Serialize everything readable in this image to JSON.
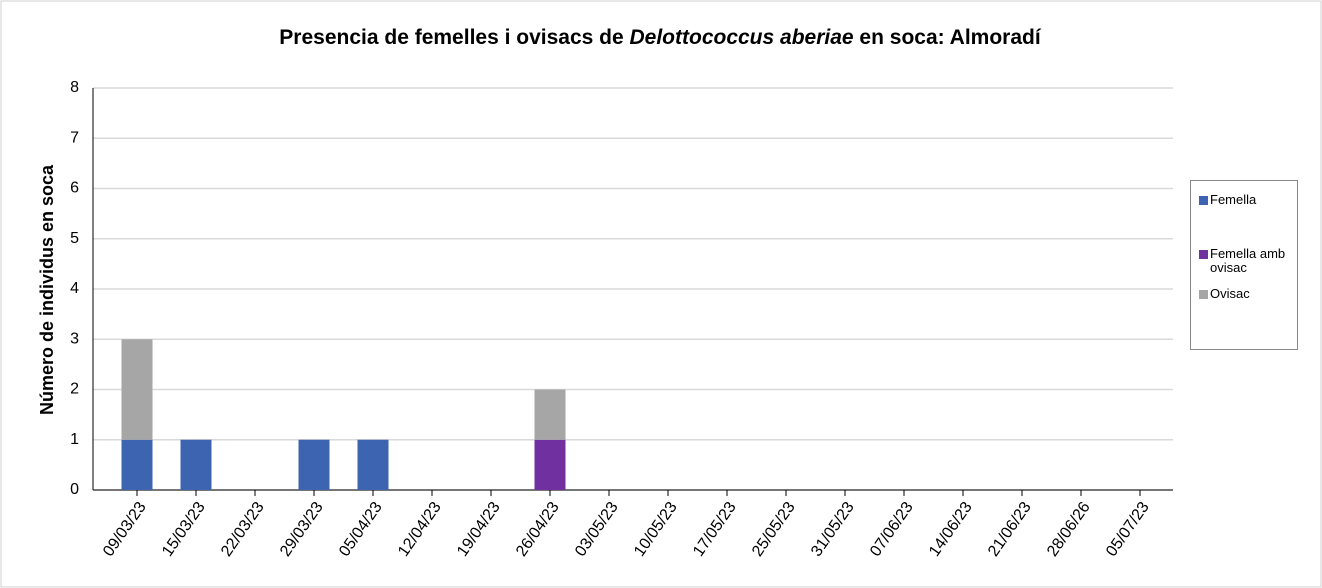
{
  "chart_data": {
    "type": "stacked_bar",
    "title": [
      "Presencia de femelles i ovisacs de ",
      "Delottococcus aberiae",
      " en soca: Almoradí"
    ],
    "y_label": "Número de individus en soca",
    "categories": [
      "09/03/23",
      "15/03/23",
      "22/03/23",
      "29/03/23",
      "05/04/23",
      "12/04/23",
      "19/04/23",
      "26/04/23",
      "03/05/23",
      "10/05/23",
      "17/05/23",
      "25/05/23",
      "31/05/23",
      "07/06/23",
      "14/06/23",
      "21/06/23",
      "28/06/26",
      "05/07/23"
    ],
    "series": [
      {
        "name": "Femella",
        "color": "#3d64b0",
        "values": [
          1,
          1,
          0,
          1,
          1,
          0,
          0,
          0,
          0,
          0,
          0,
          0,
          0,
          0,
          0,
          0,
          0,
          0
        ]
      },
      {
        "name": "Femella amb ovisac",
        "color": "#7030a0",
        "values": [
          0,
          0,
          0,
          0,
          0,
          0,
          0,
          1,
          0,
          0,
          0,
          0,
          0,
          0,
          0,
          0,
          0,
          0
        ]
      },
      {
        "name": "Ovisac",
        "color": "#a6a6a6",
        "values": [
          2,
          0,
          0,
          0,
          0,
          0,
          0,
          1,
          0,
          0,
          0,
          0,
          0,
          0,
          0,
          0,
          0,
          0
        ]
      }
    ],
    "ylim": [
      0,
      8
    ],
    "yticks": [
      0,
      1,
      2,
      3,
      4,
      5,
      6,
      7,
      8
    ],
    "grid": true,
    "legend": "right"
  }
}
